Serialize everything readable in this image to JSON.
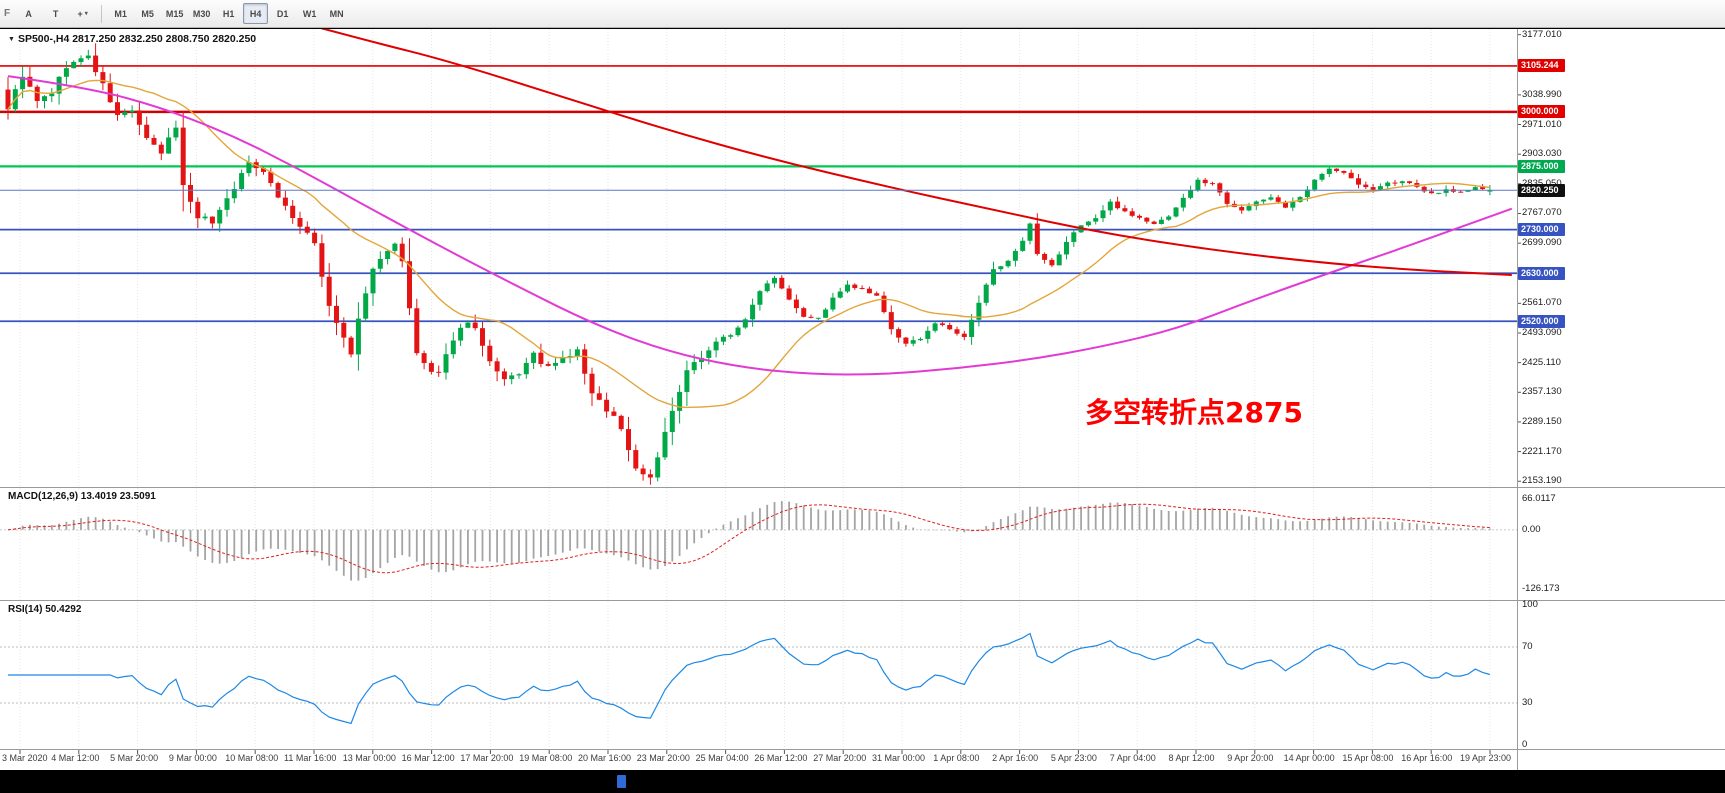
{
  "window": {
    "toolbar": {
      "left_stub": "F",
      "tools": [
        {
          "name": "arrow-tool",
          "label": "A"
        },
        {
          "name": "text-tool",
          "label": "T"
        },
        {
          "name": "cursor-tool",
          "label": "+",
          "caret": true
        }
      ],
      "timeframes": [
        {
          "label": "M1",
          "active": false
        },
        {
          "label": "M5",
          "active": false
        },
        {
          "label": "M15",
          "active": false
        },
        {
          "label": "M30",
          "active": false
        },
        {
          "label": "H1",
          "active": false
        },
        {
          "label": "H4",
          "active": true
        },
        {
          "label": "D1",
          "active": false
        },
        {
          "label": "W1",
          "active": false
        },
        {
          "label": "MN",
          "active": false
        }
      ]
    }
  },
  "main_chart": {
    "collapse_icon": "▼",
    "title_line": "SP500-,H4  2817.250 2832.250 2808.750 2820.250",
    "annotation": {
      "text": "多空转折点2875",
      "color": "#ff0000"
    },
    "bid_line": {
      "price": 2820.25,
      "label": "2820.250",
      "color": "#5b79c9"
    },
    "price_axis": {
      "ticks": [
        {
          "label": "3177.010",
          "price": 3177.01
        },
        {
          "label": "3038.990",
          "price": 3038.99
        },
        {
          "label": "2971.010",
          "price": 2971.01
        },
        {
          "label": "2903.030",
          "price": 2903.03
        },
        {
          "label": "2835.050",
          "price": 2835.05
        },
        {
          "label": "2767.070",
          "price": 2767.07
        },
        {
          "label": "2699.090",
          "price": 2699.09
        },
        {
          "label": "2561.070",
          "price": 2561.07
        },
        {
          "label": "2493.090",
          "price": 2493.09
        },
        {
          "label": "2425.110",
          "price": 2425.11
        },
        {
          "label": "2357.130",
          "price": 2357.13
        },
        {
          "label": "2289.150",
          "price": 2289.15
        },
        {
          "label": "2221.170",
          "price": 2221.17
        },
        {
          "label": "2153.190",
          "price": 2153.19
        }
      ],
      "badges": [
        {
          "label": "3105.244",
          "price": 3105.244,
          "color": "#e00000"
        },
        {
          "label": "3000.000",
          "price": 3000.0,
          "color": "#e00000"
        },
        {
          "label": "2875.000",
          "price": 2875.0,
          "color": "#00a94f"
        },
        {
          "label": "2820.250",
          "price": 2820.25,
          "color": "#101010"
        },
        {
          "label": "2730.000",
          "price": 2730.0,
          "color": "#3653c1"
        },
        {
          "label": "2630.000",
          "price": 2630.0,
          "color": "#3653c1"
        },
        {
          "label": "2520.000",
          "price": 2520.0,
          "color": "#3653c1"
        }
      ]
    },
    "levels": [
      {
        "price": 3105.244,
        "color": "#e00000",
        "width": 1.6
      },
      {
        "price": 3000.0,
        "color": "#d00000",
        "width": 2.4
      },
      {
        "price": 2875.0,
        "color": "#00c853",
        "width": 2.2
      },
      {
        "price": 2730.0,
        "color": "#3653c1",
        "width": 1.8
      },
      {
        "price": 2630.0,
        "color": "#3653c1",
        "width": 1.8
      },
      {
        "price": 2520.0,
        "color": "#3653c1",
        "width": 1.8
      }
    ],
    "time_axis": [
      "3 Mar 2020",
      "4 Mar 12:00",
      "5 Mar 20:00",
      "9 Mar 00:00",
      "10 Mar 08:00",
      "11 Mar 16:00",
      "13 Mar 00:00",
      "16 Mar 12:00",
      "17 Mar 20:00",
      "19 Mar 08:00",
      "20 Mar 16:00",
      "23 Mar 20:00",
      "25 Mar 04:00",
      "26 Mar 12:00",
      "27 Mar 20:00",
      "31 Mar 00:00",
      "1 Apr 08:00",
      "2 Apr 16:00",
      "5 Apr 23:00",
      "7 Apr 04:00",
      "8 Apr 12:00",
      "9 Apr 20:00",
      "14 Apr 00:00",
      "15 Apr 08:00",
      "16 Apr 16:00",
      "19 Apr 23:00"
    ]
  },
  "indicators": {
    "macd": {
      "label": "MACD(12,26,9) 13.4019 23.5091",
      "axis": [
        {
          "label": "66.0117",
          "value": 66.0117
        },
        {
          "label": "0.00",
          "value": 0
        },
        {
          "label": "-126.173",
          "value": -126.173
        }
      ]
    },
    "rsi": {
      "label": "RSI(14) 50.4292",
      "axis": [
        {
          "label": "100",
          "value": 100
        },
        {
          "label": "70",
          "value": 70
        },
        {
          "label": "30",
          "value": 30
        },
        {
          "label": "0",
          "value": 0
        }
      ],
      "levels": [
        70,
        30
      ]
    }
  },
  "chart_data": {
    "type": "candlestick",
    "symbol": "SP500-",
    "timeframe": "H4",
    "bars": 204,
    "price_range": [
      2140,
      3190
    ],
    "ohlc_last": [
      2817.25,
      2832.25,
      2808.75,
      2820.25
    ],
    "colors": {
      "up": "#00a847",
      "down": "#e41414",
      "ma_fast": "#e3a63c",
      "ma_mid": "#e23bd4",
      "ma_slow": "#e00000",
      "macd_hist": "#a4a4a4",
      "macd_signal": "#e02020",
      "rsi_line": "#1e88e5"
    },
    "close_anchors": [
      [
        0,
        3010
      ],
      [
        2,
        3085
      ],
      [
        4,
        3022
      ],
      [
        6,
        3045
      ],
      [
        8,
        3105
      ],
      [
        11,
        3128
      ],
      [
        13,
        3060
      ],
      [
        15,
        2990
      ],
      [
        17,
        3005
      ],
      [
        19,
        2935
      ],
      [
        21,
        2905
      ],
      [
        23,
        2968
      ],
      [
        24,
        2830
      ],
      [
        26,
        2762
      ],
      [
        28,
        2748
      ],
      [
        30,
        2802
      ],
      [
        33,
        2882
      ],
      [
        35,
        2868
      ],
      [
        37,
        2806
      ],
      [
        40,
        2736
      ],
      [
        42,
        2698
      ],
      [
        44,
        2555
      ],
      [
        46,
        2482
      ],
      [
        47,
        2440
      ],
      [
        48,
        2525
      ],
      [
        50,
        2640
      ],
      [
        53,
        2702
      ],
      [
        54,
        2652
      ],
      [
        56,
        2445
      ],
      [
        58,
        2402
      ],
      [
        59,
        2396
      ],
      [
        61,
        2482
      ],
      [
        63,
        2522
      ],
      [
        64,
        2502
      ],
      [
        66,
        2422
      ],
      [
        68,
        2382
      ],
      [
        70,
        2402
      ],
      [
        72,
        2442
      ],
      [
        74,
        2412
      ],
      [
        76,
        2432
      ],
      [
        78,
        2452
      ],
      [
        80,
        2352
      ],
      [
        83,
        2302
      ],
      [
        84,
        2272
      ],
      [
        86,
        2182
      ],
      [
        88,
        2162
      ],
      [
        89,
        2212
      ],
      [
        91,
        2312
      ],
      [
        93,
        2402
      ],
      [
        95,
        2442
      ],
      [
        97,
        2472
      ],
      [
        99,
        2492
      ],
      [
        101,
        2522
      ],
      [
        103,
        2592
      ],
      [
        105,
        2622
      ],
      [
        107,
        2572
      ],
      [
        109,
        2532
      ],
      [
        111,
        2526
      ],
      [
        113,
        2572
      ],
      [
        115,
        2602
      ],
      [
        117,
        2592
      ],
      [
        119,
        2576
      ],
      [
        121,
        2502
      ],
      [
        123,
        2466
      ],
      [
        125,
        2482
      ],
      [
        127,
        2516
      ],
      [
        129,
        2502
      ],
      [
        131,
        2482
      ],
      [
        133,
        2562
      ],
      [
        135,
        2642
      ],
      [
        137,
        2656
      ],
      [
        139,
        2702
      ],
      [
        140,
        2742
      ],
      [
        141,
        2672
      ],
      [
        143,
        2646
      ],
      [
        145,
        2702
      ],
      [
        147,
        2742
      ],
      [
        149,
        2756
      ],
      [
        151,
        2792
      ],
      [
        153,
        2772
      ],
      [
        155,
        2756
      ],
      [
        157,
        2742
      ],
      [
        159,
        2762
      ],
      [
        161,
        2802
      ],
      [
        163,
        2842
      ],
      [
        165,
        2836
      ],
      [
        167,
        2792
      ],
      [
        169,
        2776
      ],
      [
        171,
        2792
      ],
      [
        173,
        2806
      ],
      [
        175,
        2782
      ],
      [
        177,
        2802
      ],
      [
        179,
        2842
      ],
      [
        181,
        2872
      ],
      [
        183,
        2862
      ],
      [
        185,
        2832
      ],
      [
        187,
        2822
      ],
      [
        189,
        2836
      ],
      [
        191,
        2842
      ],
      [
        193,
        2826
      ],
      [
        195,
        2812
      ],
      [
        197,
        2822
      ],
      [
        199,
        2816
      ],
      [
        201,
        2826
      ],
      [
        203,
        2820.25
      ]
    ],
    "ma_slow_red_anchors": [
      [
        40,
        3205
      ],
      [
        50,
        3160
      ],
      [
        60,
        3118
      ],
      [
        75,
        3040
      ],
      [
        90,
        2960
      ],
      [
        105,
        2890
      ],
      [
        120,
        2830
      ],
      [
        135,
        2775
      ],
      [
        150,
        2722
      ],
      [
        165,
        2683
      ],
      [
        180,
        2654
      ],
      [
        192,
        2638
      ],
      [
        206,
        2626
      ]
    ],
    "ma_mid_magenta_anchors": [
      [
        0,
        3082
      ],
      [
        10,
        3058
      ],
      [
        20,
        3016
      ],
      [
        30,
        2952
      ],
      [
        40,
        2868
      ],
      [
        50,
        2775
      ],
      [
        60,
        2685
      ],
      [
        70,
        2598
      ],
      [
        80,
        2515
      ],
      [
        90,
        2452
      ],
      [
        100,
        2415
      ],
      [
        110,
        2398
      ],
      [
        120,
        2398
      ],
      [
        130,
        2412
      ],
      [
        140,
        2432
      ],
      [
        150,
        2462
      ],
      [
        160,
        2502
      ],
      [
        170,
        2565
      ],
      [
        180,
        2625
      ],
      [
        190,
        2682
      ],
      [
        198,
        2730
      ],
      [
        206,
        2778
      ]
    ],
    "ma_fast_orange": {
      "type": "sma",
      "period": 20
    },
    "macd": {
      "fast": 12,
      "slow": 26,
      "signal": 9,
      "current_macd": 13.4019,
      "current_signal": 23.5091,
      "range": [
        -140,
        80
      ]
    },
    "rsi": {
      "period": 14,
      "current": 50.4292,
      "range": [
        0,
        100
      ]
    },
    "noise_seed": 9
  }
}
